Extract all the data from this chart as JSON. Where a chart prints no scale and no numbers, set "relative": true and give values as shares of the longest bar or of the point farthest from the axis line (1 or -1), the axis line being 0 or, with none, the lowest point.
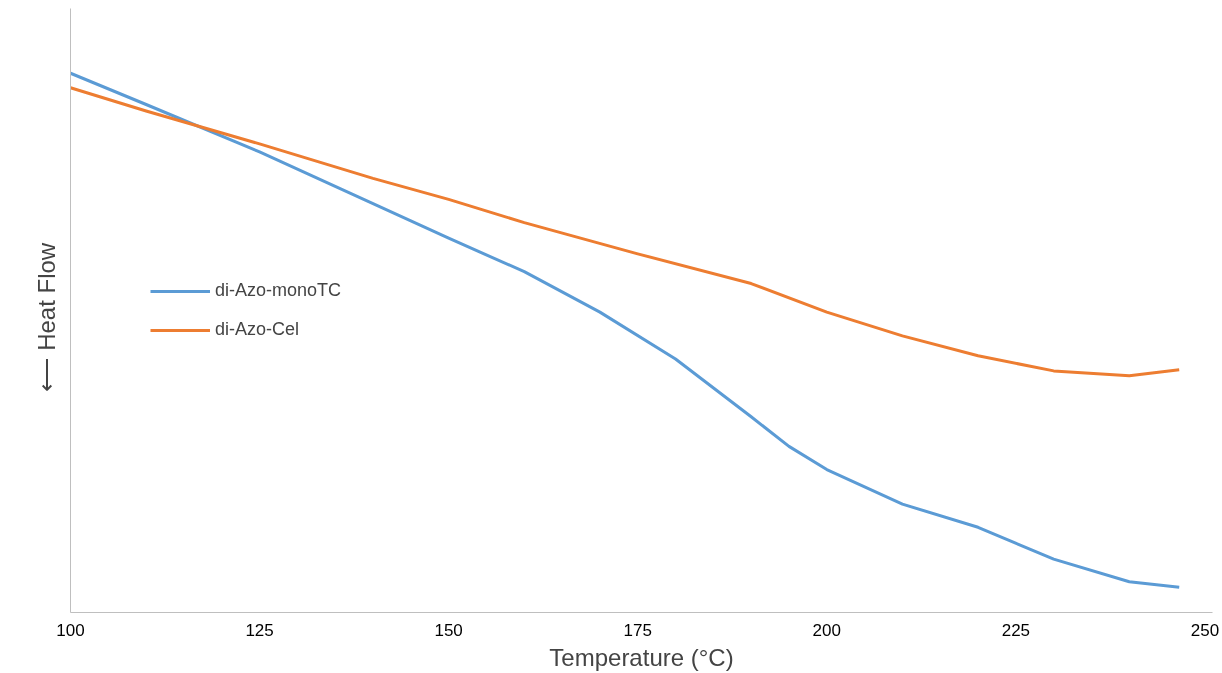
{
  "chart_data": {
    "type": "line",
    "relative": true,
    "xlabel": "Temperature (°C)",
    "ylabel": "⟵   Heat Flow",
    "xlim": [
      100,
      251
    ],
    "xticks": [
      100,
      125,
      150,
      175,
      200,
      225,
      250
    ],
    "grid": false,
    "legend": "left",
    "series": [
      {
        "name": "di-Azo-monoTC",
        "color": "#5b9bd5",
        "x": [
          100,
          110,
          125,
          140,
          150,
          160,
          170,
          180,
          190,
          195,
          200,
          210,
          220,
          230,
          240,
          246.6
        ],
        "values": [
          1.0,
          0.942,
          0.854,
          0.758,
          0.694,
          0.632,
          0.557,
          0.47,
          0.363,
          0.308,
          0.265,
          0.201,
          0.158,
          0.099,
          0.057,
          0.047
        ]
      },
      {
        "name": "di-Azo-Cel",
        "color": "#ed7d31",
        "x": [
          100,
          110,
          125,
          140,
          150,
          160,
          175,
          190,
          200,
          210,
          220,
          230,
          240,
          246.6
        ],
        "values": [
          0.973,
          0.93,
          0.869,
          0.805,
          0.766,
          0.723,
          0.665,
          0.61,
          0.557,
          0.513,
          0.476,
          0.448,
          0.439,
          0.45
        ]
      }
    ]
  }
}
